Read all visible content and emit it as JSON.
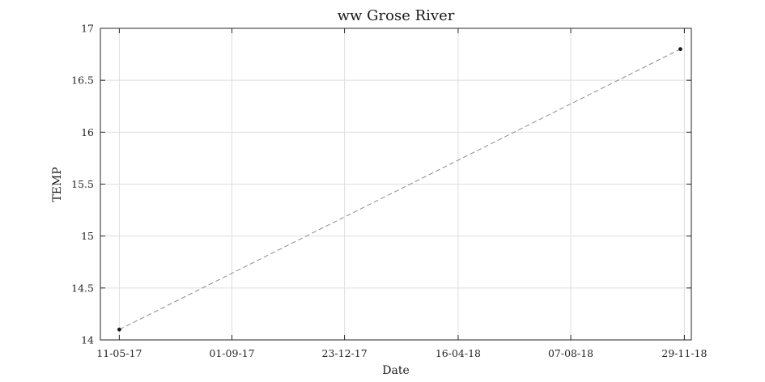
{
  "chart_data": {
    "type": "line",
    "title": "ww Grose River",
    "xlabel": "Date",
    "ylabel": "TEMP",
    "x_axis_type": "date",
    "x_tick_labels": [
      "11-05-17",
      "01-09-17",
      "23-12-17",
      "16-04-18",
      "07-08-18",
      "29-11-18"
    ],
    "x_tick_dates": [
      "2017-05-11",
      "2017-09-01",
      "2017-12-23",
      "2018-04-16",
      "2018-08-07",
      "2018-11-29"
    ],
    "xlim": [
      "2017-04-22",
      "2018-12-06"
    ],
    "y_tick_labels": [
      "14",
      "14.5",
      "15",
      "15.5",
      "16",
      "16.5",
      "17"
    ],
    "ylim": [
      14,
      17
    ],
    "grid": true,
    "series": [
      {
        "x": [
          "2017-05-11",
          "2018-11-25"
        ],
        "y": [
          14.1,
          16.8
        ],
        "line_style": "dashed",
        "line_color": "#8c8c8c",
        "marker_color": "#1a1a1a"
      }
    ]
  }
}
